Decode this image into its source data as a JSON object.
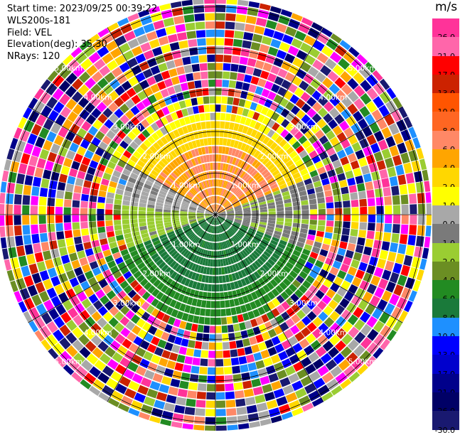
{
  "header": {
    "start_time": "Start time: 2023/09/25 00:39:22",
    "instrument": "WLS200s-181",
    "field": "Field: VEL",
    "elevation": "Elevation(deg): 35.30",
    "nrays": "NRays: 120"
  },
  "colorbar": {
    "unit": "m/s",
    "levels": [
      {
        "label": "26.0",
        "color": "#ff3399"
      },
      {
        "label": "21.0",
        "color": "#ff66aa"
      },
      {
        "label": "17.0",
        "color": "#ff0000"
      },
      {
        "label": "13.0",
        "color": "#cc2200"
      },
      {
        "label": "10.0",
        "color": "#ff5500"
      },
      {
        "label": "8.0",
        "color": "#ff6622"
      },
      {
        "label": "6.0",
        "color": "#ff8866"
      },
      {
        "label": "4.0",
        "color": "#ffa500"
      },
      {
        "label": "2.0",
        "color": "#ffd700"
      },
      {
        "label": "1.0",
        "color": "#ffff00"
      },
      {
        "label": "0.0",
        "color": "#a8a8a8"
      },
      {
        "label": "-1.0",
        "color": "#7a7a7a"
      },
      {
        "label": "-2.0",
        "color": "#9acd32"
      },
      {
        "label": "-4.0",
        "color": "#6b8e23"
      },
      {
        "label": "-6.0",
        "color": "#228b22"
      },
      {
        "label": "-8.0",
        "color": "#1a7a3a"
      },
      {
        "label": "-10.0",
        "color": "#1e90ff"
      },
      {
        "label": "-13.0",
        "color": "#0000ff"
      },
      {
        "label": "-17.0",
        "color": "#0000cd"
      },
      {
        "label": "-21.0",
        "color": "#00008b"
      },
      {
        "label": "-26.0",
        "color": "#000066"
      },
      {
        "label": "-30.0",
        "color": "#191970"
      }
    ]
  },
  "chart_data": {
    "type": "heatmap",
    "projection": "polar PPI",
    "field": "VEL",
    "units": "m/s",
    "nrays": 120,
    "range_ring_labels": [
      "1.00km",
      "2.00km",
      "3.00km",
      "4.00km",
      "5.00km"
    ],
    "range_rings_km": [
      1,
      2,
      3,
      4,
      5
    ],
    "max_range_km": 5,
    "colorbar_ticks": [
      26.0,
      21.0,
      17.0,
      13.0,
      10.0,
      8.0,
      6.0,
      4.0,
      2.0,
      1.0,
      0.0,
      -1.0,
      -2.0,
      -4.0,
      -6.0,
      -8.0,
      -10.0,
      -13.0,
      -17.0,
      -21.0,
      -26.0,
      -30.0
    ],
    "velocity_pattern": [
      {
        "sector": "north (az -60 to 70)",
        "range_km": [
          0,
          2.6
        ],
        "velocity_ms": 3.0
      },
      {
        "sector": "east (az 70 to 110)",
        "range_km": [
          0,
          2.2
        ],
        "velocity_ms": -1.0
      },
      {
        "sector": "south (az 110 to 250)",
        "range_km": [
          0,
          2.6
        ],
        "velocity_ms": -5.0
      },
      {
        "sector": "west (az 250 to 300)",
        "range_km": [
          0,
          2.2
        ],
        "velocity_ms": 0.0
      },
      {
        "sector": "all",
        "range_km": [
          2.6,
          5.2
        ],
        "velocity_ms": "noise"
      }
    ]
  }
}
